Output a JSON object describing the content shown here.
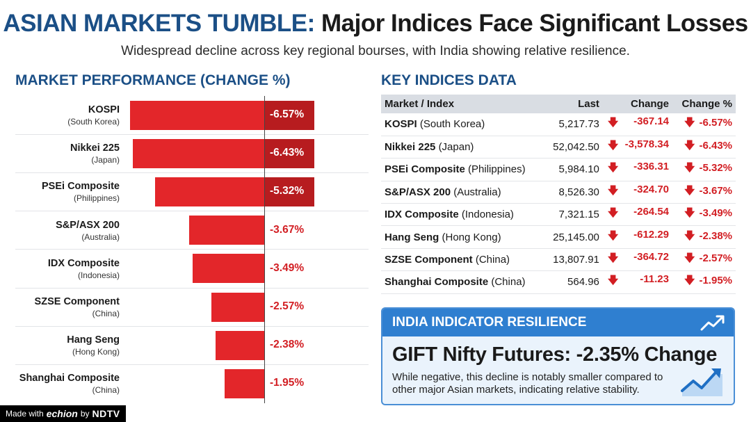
{
  "header": {
    "title_part1": "ASIAN MARKETS TUMBLE:",
    "title_part2": "Major Indices Face Significant Losses",
    "subtitle": "Widespread decline across key regional bourses, with India showing relative resilience."
  },
  "chart_data": {
    "type": "bar",
    "orientation": "horizontal",
    "title": "MARKET PERFORMANCE (CHANGE %)",
    "categories": [
      {
        "name": "KOSPI",
        "sub": "(South Korea)"
      },
      {
        "name": "Nikkei 225",
        "sub": "(Japan)"
      },
      {
        "name": "PSEi Composite",
        "sub": "(Philippines)"
      },
      {
        "name": "S&P/ASX 200",
        "sub": "(Australia)"
      },
      {
        "name": "IDX Composite",
        "sub": "(Indonesia)"
      },
      {
        "name": "SZSE Component",
        "sub": "(China)"
      },
      {
        "name": "Hang Seng",
        "sub": "(Hong Kong)"
      },
      {
        "name": "Shanghai Composite",
        "sub": "(China)"
      }
    ],
    "values": [
      -6.57,
      -6.43,
      -5.32,
      -3.67,
      -3.49,
      -2.57,
      -2.38,
      -1.95
    ],
    "value_labels": [
      "-6.57%",
      "-6.43%",
      "-5.32%",
      "-3.67%",
      "-3.49%",
      "-2.57%",
      "-2.38%",
      "-1.95%"
    ],
    "xlim": [
      -6.9,
      0
    ],
    "bar_color": "#e3262a",
    "label_color": "#d21e23"
  },
  "table": {
    "title": "KEY INDICES DATA",
    "columns": [
      "Market / Index",
      "Last",
      "Change",
      "Change %"
    ],
    "rows": [
      {
        "name": "KOSPI",
        "country": "(South Korea)",
        "last": "5,217.73",
        "change": "-367.14",
        "pct": "-6.57%"
      },
      {
        "name": "Nikkei 225",
        "country": "(Japan)",
        "last": "52,042.50",
        "change": "-3,578.34",
        "pct": "-6.43%"
      },
      {
        "name": "PSEi Composite",
        "country": "(Philippines)",
        "last": "5,984.10",
        "change": "-336.31",
        "pct": "-5.32%"
      },
      {
        "name": "S&P/ASX 200",
        "country": "(Australia)",
        "last": "8,526.30",
        "change": "-324.70",
        "pct": "-3.67%"
      },
      {
        "name": "IDX Composite",
        "country": "(Indonesia)",
        "last": "7,321.15",
        "change": "-264.54",
        "pct": "-3.49%"
      },
      {
        "name": "Hang Seng",
        "country": "(Hong Kong)",
        "last": "25,145.00",
        "change": "-612.29",
        "pct": "-2.38%"
      },
      {
        "name": "SZSE Component",
        "country": "(China)",
        "last": "13,807.91",
        "change": "-364.72",
        "pct": "-2.57%"
      },
      {
        "name": "Shanghai Composite",
        "country": "(China)",
        "last": "564.96",
        "change": "-11.23",
        "pct": "-1.95%"
      }
    ],
    "down_arrow": "🡇"
  },
  "india": {
    "header": "INDIA INDICATOR RESILIENCE",
    "headline": "GIFT Nifty Futures: -2.35% Change",
    "description": "While negative, this decline is notably smaller compared to other major Asian markets, indicating relative stability.",
    "accent": "#2f7fd0"
  },
  "footer": {
    "made_with": "Made with",
    "brand": "echion",
    "by": "by",
    "network": "NDTV"
  }
}
